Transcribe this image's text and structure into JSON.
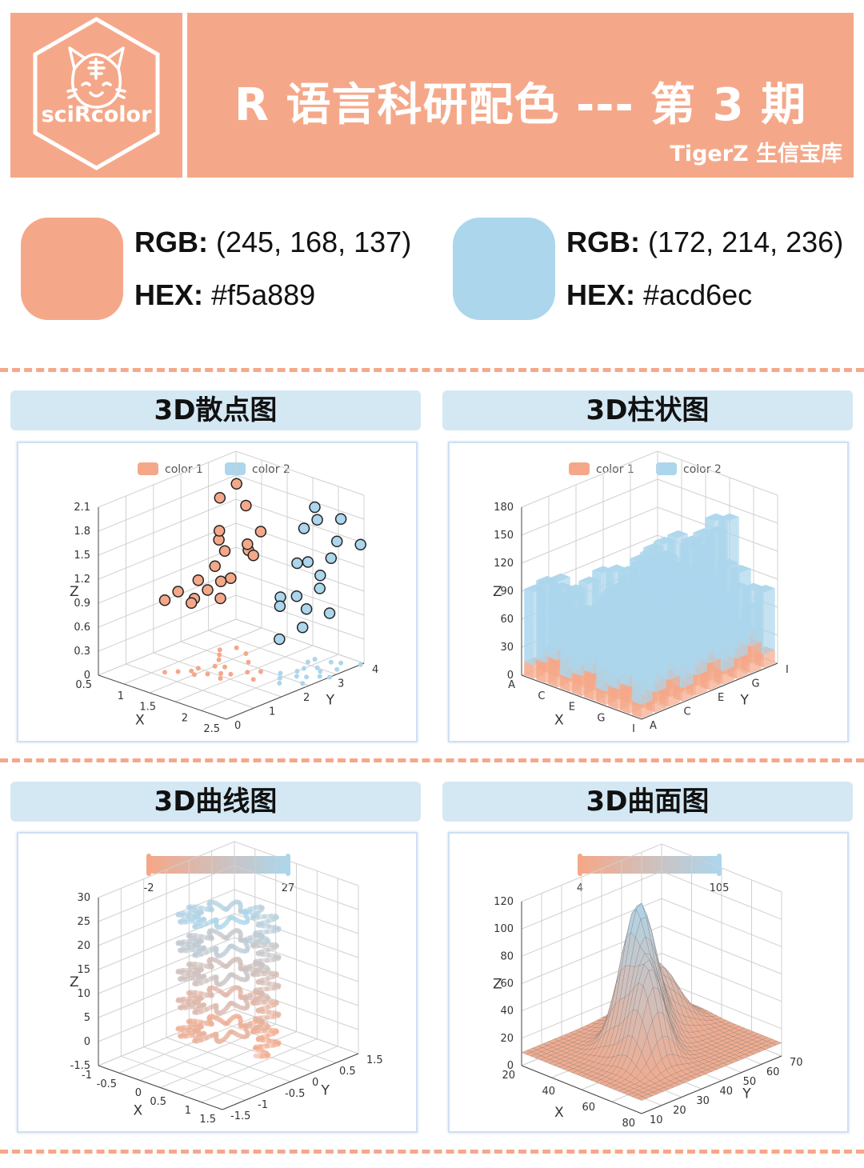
{
  "header": {
    "logo_text": "sciRcolor",
    "title": "R 语言科研配色 --- 第 3 期",
    "subtitle": "TigerZ 生信宝库"
  },
  "palette": [
    {
      "rgb_label": "RGB:",
      "rgb_value": "(245, 168, 137)",
      "hex_label": "HEX:",
      "hex_value": "#f5a889",
      "color": "#f5a889"
    },
    {
      "rgb_label": "RGB:",
      "rgb_value": "(172, 214, 236)",
      "hex_label": "HEX:",
      "hex_value": "#acd6ec",
      "color": "#acd6ec"
    }
  ],
  "panels": {
    "scatter_title": "3D散点图",
    "bar_title": "3D柱状图",
    "line_title": "3D曲线图",
    "surface_title": "3D曲面图"
  },
  "chart_data": [
    {
      "type": "scatter",
      "title": "3D散点图",
      "legend": [
        "color 1",
        "color 2"
      ],
      "legend_position": "top-center",
      "xlabel": "X",
      "ylabel": "Y",
      "zlabel": "Z",
      "z_ticks": [
        "2.1",
        "1.8",
        "1.5",
        "1.2",
        "0.9",
        "0.6",
        "0.3",
        "0"
      ],
      "x_ticks": [
        "0.5",
        "1",
        "1.5",
        "2",
        "2.5"
      ],
      "y_ticks": [
        "0",
        "1",
        "2",
        "3",
        "4"
      ],
      "xlim": [
        0.5,
        2.5
      ],
      "ylim": [
        0,
        4
      ],
      "zlim": [
        0,
        2.1
      ],
      "series": [
        {
          "name": "color 1",
          "color": "#f5a889",
          "points": [
            {
              "x": 1.1,
              "y": 2.9,
              "z": 2.05
            },
            {
              "x": 1.0,
              "y": 2.6,
              "z": 1.9
            },
            {
              "x": 1.3,
              "y": 2.8,
              "z": 1.85
            },
            {
              "x": 1.2,
              "y": 2.2,
              "z": 1.5
            },
            {
              "x": 1.4,
              "y": 2.0,
              "z": 1.45
            },
            {
              "x": 1.1,
              "y": 2.4,
              "z": 1.55
            },
            {
              "x": 1.5,
              "y": 2.5,
              "z": 1.4
            },
            {
              "x": 1.3,
              "y": 1.9,
              "z": 1.25
            },
            {
              "x": 1.6,
              "y": 1.8,
              "z": 1.2
            },
            {
              "x": 1.2,
              "y": 1.6,
              "z": 1.1
            },
            {
              "x": 1.4,
              "y": 1.5,
              "z": 1.05
            },
            {
              "x": 1.5,
              "y": 1.7,
              "z": 1.15
            },
            {
              "x": 1.1,
              "y": 1.2,
              "z": 1.0
            },
            {
              "x": 1.3,
              "y": 1.3,
              "z": 0.95
            },
            {
              "x": 1.0,
              "y": 1.0,
              "z": 0.9
            },
            {
              "x": 1.7,
              "y": 2.1,
              "z": 1.6
            },
            {
              "x": 1.8,
              "y": 2.3,
              "z": 1.75
            },
            {
              "x": 1.9,
              "y": 1.9,
              "z": 1.55
            },
            {
              "x": 1.2,
              "y": 1.4,
              "z": 0.85
            },
            {
              "x": 1.6,
              "y": 1.5,
              "z": 1.0
            }
          ]
        },
        {
          "name": "color 2",
          "color": "#acd6ec",
          "points": [
            {
              "x": 2.2,
              "y": 3.2,
              "z": 1.85
            },
            {
              "x": 2.0,
              "y": 3.5,
              "z": 1.9
            },
            {
              "x": 2.3,
              "y": 3.7,
              "z": 1.8
            },
            {
              "x": 2.1,
              "y": 3.0,
              "z": 1.75
            },
            {
              "x": 2.4,
              "y": 3.4,
              "z": 1.6
            },
            {
              "x": 2.5,
              "y": 3.9,
              "z": 1.5
            },
            {
              "x": 2.2,
              "y": 3.6,
              "z": 1.3
            },
            {
              "x": 2.0,
              "y": 3.3,
              "z": 1.25
            },
            {
              "x": 2.3,
              "y": 3.1,
              "z": 1.2
            },
            {
              "x": 2.1,
              "y": 2.8,
              "z": 1.35
            },
            {
              "x": 2.4,
              "y": 2.9,
              "z": 1.1
            },
            {
              "x": 2.2,
              "y": 2.6,
              "z": 1.0
            },
            {
              "x": 2.0,
              "y": 2.5,
              "z": 0.95
            },
            {
              "x": 2.3,
              "y": 2.7,
              "z": 0.85
            },
            {
              "x": 2.5,
              "y": 3.0,
              "z": 0.8
            },
            {
              "x": 2.1,
              "y": 2.3,
              "z": 0.9
            },
            {
              "x": 2.4,
              "y": 2.4,
              "z": 0.7
            },
            {
              "x": 2.2,
              "y": 2.1,
              "z": 0.55
            }
          ]
        }
      ]
    },
    {
      "type": "bar",
      "title": "3D柱状图",
      "legend": [
        "color 1",
        "color 2"
      ],
      "legend_position": "top-center",
      "xlabel": "X",
      "ylabel": "Y",
      "zlabel": "Z",
      "z_ticks": [
        "180",
        "150",
        "120",
        "90",
        "60",
        "30",
        "0"
      ],
      "x_ticks": [
        "A",
        "C",
        "E",
        "G",
        "I"
      ],
      "y_ticks": [
        "A",
        "C",
        "E",
        "G",
        "I"
      ],
      "zlim": [
        0,
        180
      ],
      "series": [
        {
          "name": "color 1",
          "color": "#f5a889"
        },
        {
          "name": "color 2",
          "color": "#acd6ec"
        }
      ]
    },
    {
      "type": "line",
      "title": "3D曲线图",
      "visual_map": {
        "min_label": "-2",
        "max_label": "27",
        "min_color": "#f5a889",
        "max_color": "#acd6ec"
      },
      "xlabel": "X",
      "ylabel": "Y",
      "zlabel": "Z",
      "z_ticks": [
        "30",
        "25",
        "20",
        "15",
        "10",
        "5",
        "0",
        "-1.5"
      ],
      "x_ticks": [
        "-1",
        "-0.5",
        "0",
        "0.5",
        "1",
        "1.5"
      ],
      "y_ticks": [
        "-1.5",
        "-1",
        "-0.5",
        "0",
        "0.5",
        "1.5"
      ],
      "zlim": [
        -1.5,
        30
      ]
    },
    {
      "type": "surface",
      "title": "3D曲面图",
      "visual_map": {
        "min_label": "4",
        "max_label": "105",
        "min_color": "#f5a889",
        "max_color": "#acd6ec"
      },
      "xlabel": "X",
      "ylabel": "Y",
      "zlabel": "Z",
      "z_ticks": [
        "120",
        "100",
        "80",
        "60",
        "40",
        "20",
        "0"
      ],
      "x_ticks": [
        "20",
        "40",
        "60",
        "80"
      ],
      "y_ticks": [
        "10",
        "20",
        "30",
        "40",
        "50",
        "60",
        "70"
      ],
      "zlim": [
        0,
        120
      ]
    }
  ]
}
